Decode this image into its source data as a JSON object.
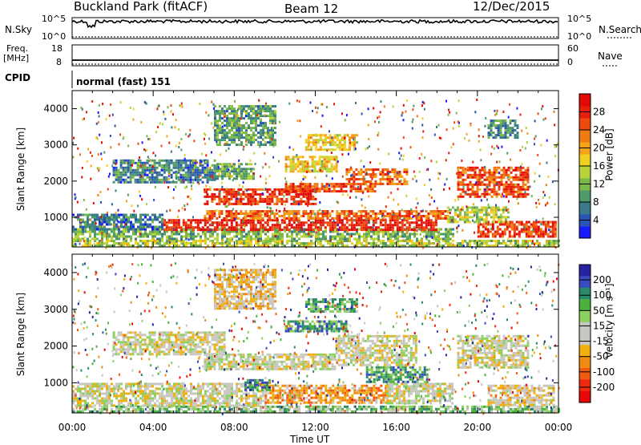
{
  "header": {
    "station": "Buckland Park (fitACF)",
    "beam": "Beam 12",
    "date": "12/Dec/2015"
  },
  "strip_panels": {
    "noise": {
      "left_label": "N.Sky",
      "right_label": "N.Search",
      "left_ticks": [
        "10^5",
        "10^0"
      ],
      "right_ticks": [
        "10^5",
        "10^0"
      ],
      "level": 0.82
    },
    "freq": {
      "left_label_top": "Freq.",
      "left_label_bottom": "[MHz]",
      "right_label": "Nave",
      "left_ticks": [
        "18",
        "8"
      ],
      "right_ticks": [
        "60",
        "0"
      ]
    },
    "cpid": {
      "label": "CPID",
      "text": "normal (fast) 151"
    }
  },
  "chart_data": [
    {
      "type": "heatmap",
      "name": "power",
      "ylabel": "Slant Range [km]",
      "xlabel": "",
      "yticks": [
        "1000",
        "2000",
        "3000",
        "4000"
      ],
      "ylim": [
        180,
        4500
      ],
      "xlim": [
        0,
        24
      ],
      "colorbar": {
        "label": "Power [dB]",
        "ticks": [
          "4",
          "8",
          "12",
          "16",
          "20",
          "24",
          "28"
        ],
        "colors": [
          "#1a1aff",
          "#2a55b4",
          "#3a7a8a",
          "#4f9a6a",
          "#7bb84a",
          "#b8d43a",
          "#f0d020",
          "#f5a318",
          "#f07a14",
          "#ee4a10",
          "#e81e0c",
          "#e20a08"
        ]
      },
      "regions": [
        {
          "t0": 0.0,
          "t1": 24.0,
          "r0": 200,
          "r1": 380,
          "v": 0.45
        },
        {
          "t0": 0.0,
          "t1": 18.8,
          "r0": 380,
          "r1": 700,
          "v": 0.35
        },
        {
          "t0": 0.0,
          "t1": 4.5,
          "r0": 700,
          "r1": 1100,
          "v": 0.2
        },
        {
          "t0": 4.5,
          "t1": 18.0,
          "r0": 620,
          "r1": 950,
          "v": 0.9
        },
        {
          "t0": 6.5,
          "t1": 18.5,
          "r0": 950,
          "r1": 1200,
          "v": 0.75
        },
        {
          "t0": 6.5,
          "t1": 12.0,
          "r0": 1350,
          "r1": 1800,
          "v": 0.85
        },
        {
          "t0": 10.5,
          "t1": 15.0,
          "r0": 1700,
          "r1": 1950,
          "v": 0.8
        },
        {
          "t0": 13.5,
          "t1": 16.5,
          "r0": 1900,
          "r1": 2350,
          "v": 0.75
        },
        {
          "t0": 2.0,
          "t1": 7.0,
          "r0": 2000,
          "r1": 2600,
          "v": 0.22
        },
        {
          "t0": 7.0,
          "t1": 9.0,
          "r0": 2100,
          "r1": 2500,
          "v": 0.35
        },
        {
          "t0": 10.5,
          "t1": 13.0,
          "r0": 2300,
          "r1": 2700,
          "v": 0.55
        },
        {
          "t0": 11.5,
          "t1": 14.0,
          "r0": 2900,
          "r1": 3300,
          "v": 0.55
        },
        {
          "t0": 19.0,
          "t1": 22.5,
          "r0": 1600,
          "r1": 2400,
          "v": 0.8
        },
        {
          "t0": 20.0,
          "t1": 23.8,
          "r0": 450,
          "r1": 900,
          "v": 0.85
        },
        {
          "t0": 18.5,
          "t1": 21.5,
          "r0": 900,
          "r1": 1300,
          "v": 0.45
        },
        {
          "t0": 7.0,
          "t1": 10.0,
          "r0": 3000,
          "r1": 4100,
          "v": 0.3
        },
        {
          "t0": 20.5,
          "t1": 22.0,
          "r0": 3200,
          "r1": 3700,
          "v": 0.25
        }
      ]
    },
    {
      "type": "heatmap",
      "name": "velocity",
      "ylabel": "Slant Range [km]",
      "xlabel": "Time UT",
      "xticks": [
        "00:00",
        "04:00",
        "08:00",
        "12:00",
        "16:00",
        "20:00",
        "00:00"
      ],
      "yticks": [
        "1000",
        "2000",
        "3000",
        "4000"
      ],
      "ylim": [
        180,
        4500
      ],
      "xlim": [
        0,
        24
      ],
      "colorbar": {
        "label": "Velocity [m s⁻¹]",
        "ticks": [
          "200",
          "100",
          "50",
          "15",
          "-15",
          "-50",
          "-100",
          "-200"
        ],
        "colors": [
          "#2424a0",
          "#3a4ac0",
          "#2a8a6a",
          "#4cb040",
          "#8cd060",
          "#c8c8c0",
          "#c8c8c0",
          "#f0b010",
          "#f08a10",
          "#f05a10",
          "#ee2a10",
          "#e60808"
        ]
      },
      "regions": [
        {
          "t0": 0.0,
          "t1": 24.0,
          "r0": 200,
          "r1": 380,
          "v": 0.35
        },
        {
          "t0": 0.0,
          "t1": 9.5,
          "r0": 380,
          "r1": 1000,
          "v": 0.5
        },
        {
          "t0": 9.5,
          "t1": 15.5,
          "r0": 450,
          "r1": 950,
          "v": 0.68
        },
        {
          "t0": 15.5,
          "t1": 18.8,
          "r0": 450,
          "r1": 1000,
          "v": 0.5
        },
        {
          "t0": 8.5,
          "t1": 9.8,
          "r0": 800,
          "r1": 1100,
          "v": 0.2
        },
        {
          "t0": 2.0,
          "t1": 7.5,
          "r0": 1800,
          "r1": 2400,
          "v": 0.5
        },
        {
          "t0": 6.5,
          "t1": 13.0,
          "r0": 1350,
          "r1": 1800,
          "v": 0.5
        },
        {
          "t0": 13.0,
          "t1": 17.0,
          "r0": 1500,
          "r1": 2300,
          "v": 0.5
        },
        {
          "t0": 14.5,
          "t1": 17.5,
          "r0": 1000,
          "r1": 1450,
          "v": 0.25
        },
        {
          "t0": 10.5,
          "t1": 13.5,
          "r0": 2400,
          "r1": 2700,
          "v": 0.25
        },
        {
          "t0": 11.5,
          "t1": 14.0,
          "r0": 2950,
          "r1": 3300,
          "v": 0.3
        },
        {
          "t0": 19.0,
          "t1": 22.5,
          "r0": 1400,
          "r1": 2300,
          "v": 0.5
        },
        {
          "t0": 20.5,
          "t1": 23.8,
          "r0": 400,
          "r1": 950,
          "v": 0.55
        },
        {
          "t0": 7.0,
          "t1": 10.0,
          "r0": 3000,
          "r1": 4100,
          "v": 0.6
        }
      ]
    }
  ]
}
